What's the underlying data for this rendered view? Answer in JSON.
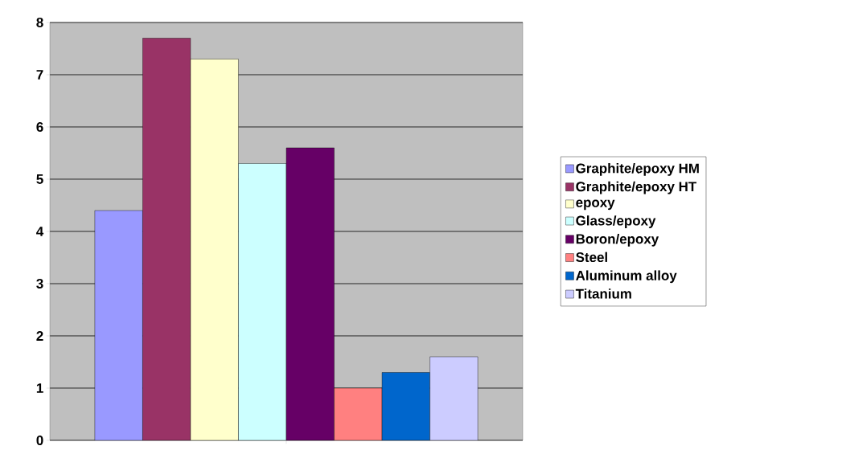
{
  "chart_data": {
    "type": "bar",
    "categories": [
      null
    ],
    "series": [
      {
        "name": "Graphite/epoxy HM",
        "color": "#9999ff",
        "values": [
          4.4
        ]
      },
      {
        "name": "Graphite/epoxy HT",
        "color": "#993366",
        "values": [
          7.7
        ]
      },
      {
        "name": "epoxy",
        "color": "#ffffcc",
        "values": [
          7.3
        ]
      },
      {
        "name": "Glass/epoxy",
        "color": "#ccffff",
        "values": [
          5.3
        ]
      },
      {
        "name": "Boron/epoxy",
        "color": "#660066",
        "values": [
          5.6
        ]
      },
      {
        "name": "Steel",
        "color": "#ff8080",
        "values": [
          1.0
        ]
      },
      {
        "name": "Aluminum alloy",
        "color": "#0066cc",
        "values": [
          1.3
        ]
      },
      {
        "name": "Titanium",
        "color": "#ccccff",
        "values": [
          1.6
        ]
      }
    ],
    "ylim": [
      0,
      8
    ],
    "yticks": [
      0,
      1,
      2,
      3,
      4,
      5,
      6,
      7,
      8
    ],
    "grid": "y",
    "legend": "right"
  }
}
